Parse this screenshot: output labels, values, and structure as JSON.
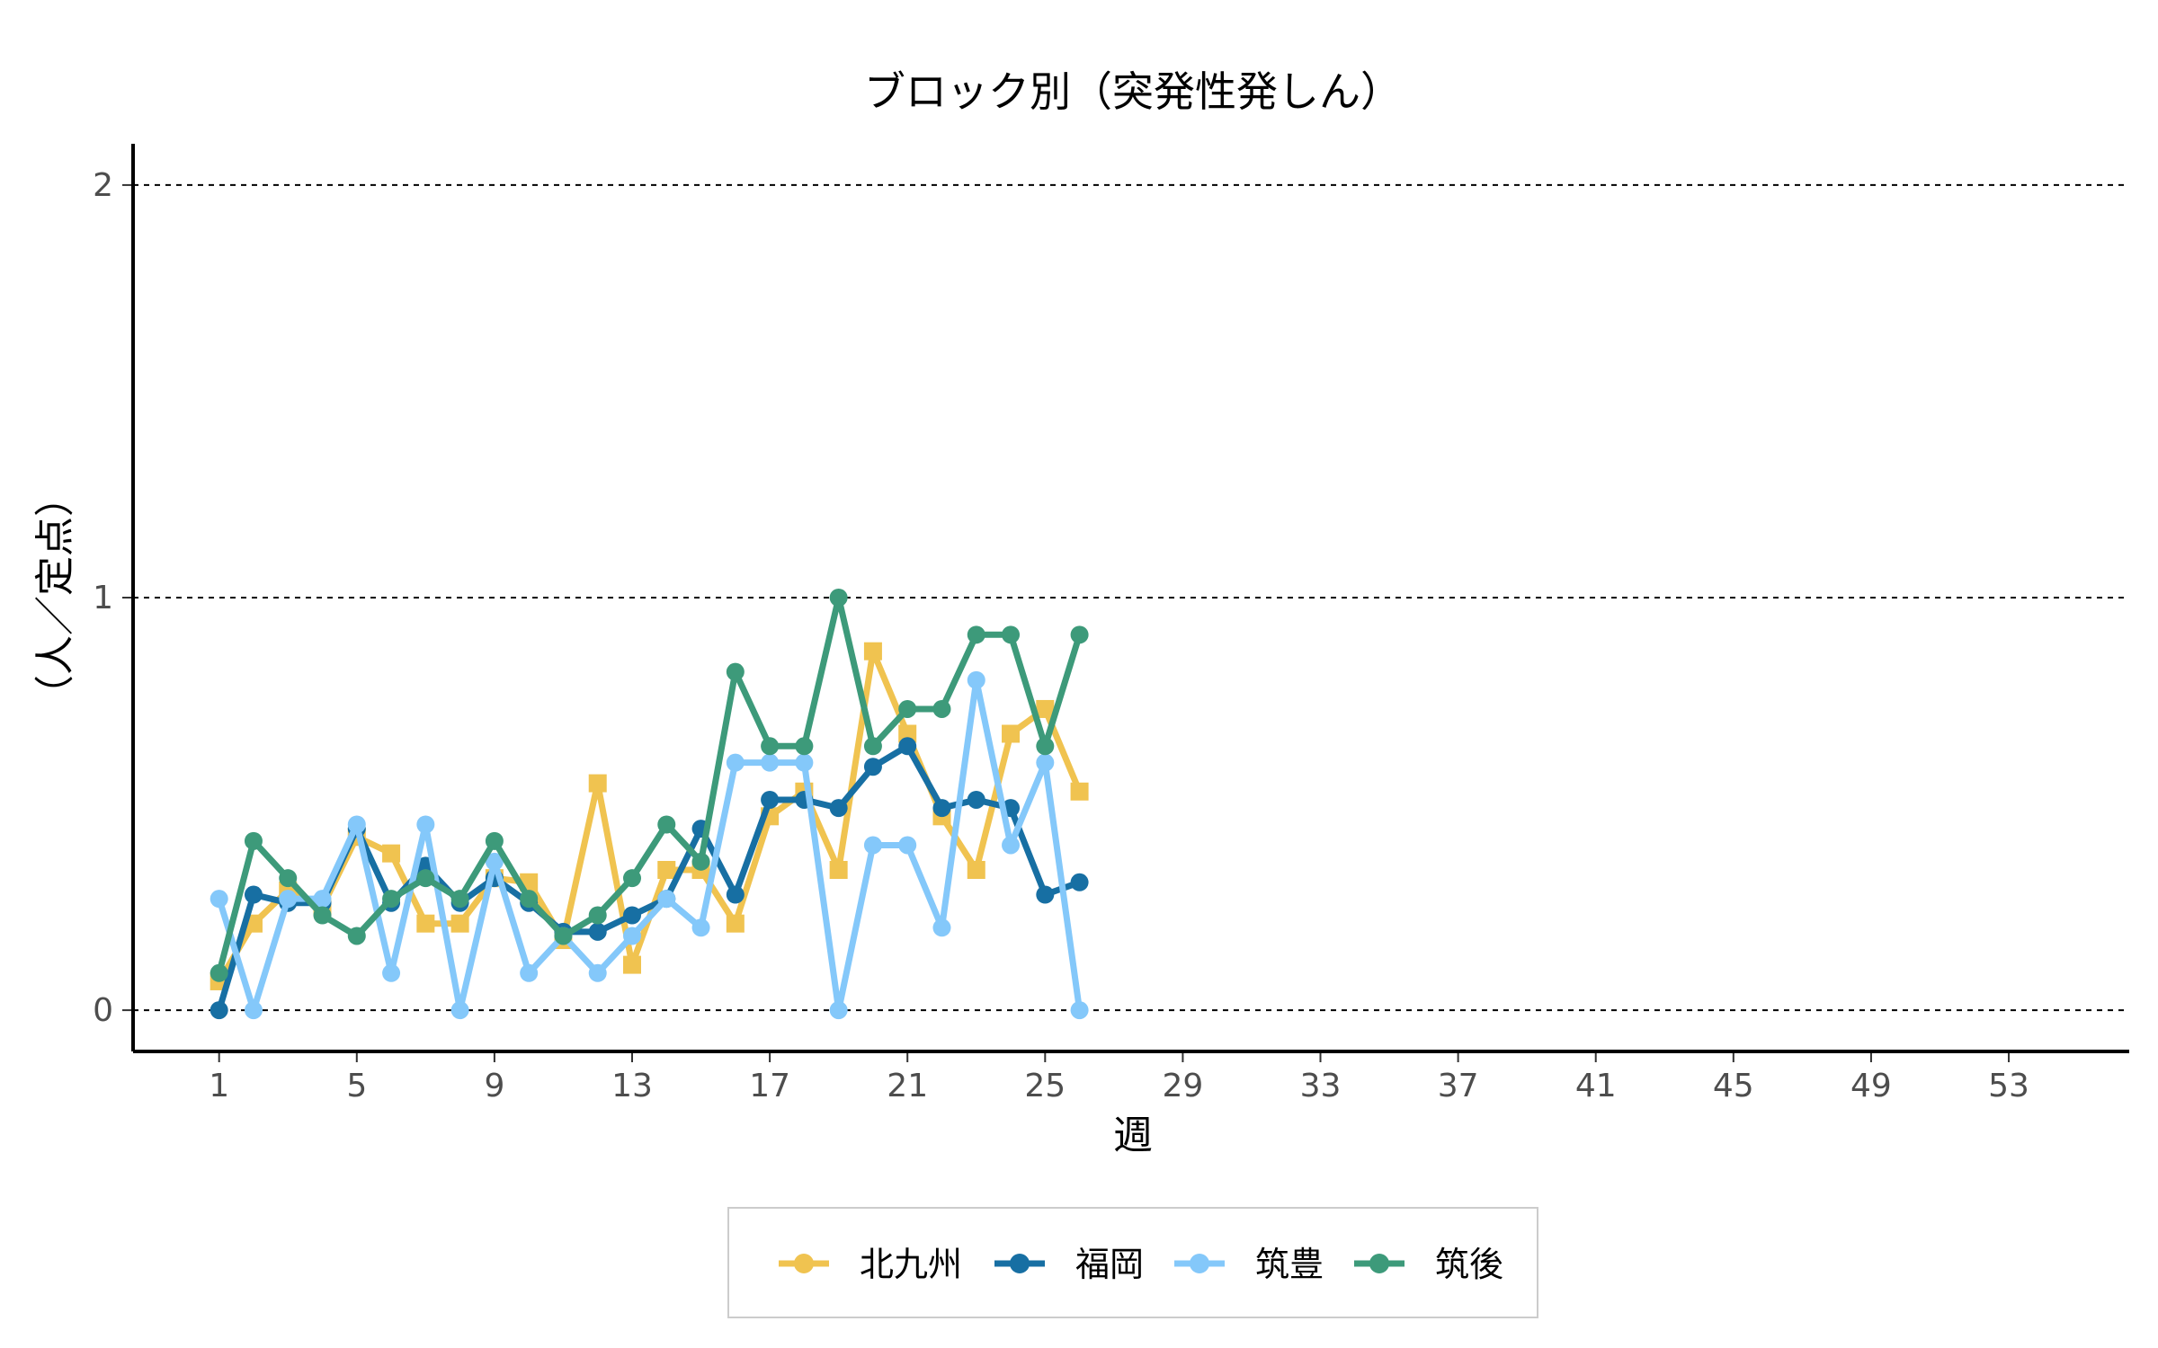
{
  "chart_data": {
    "type": "line",
    "title": "ブロック別（突発性発しん）",
    "xlabel": "週",
    "ylabel": "（人／定点）",
    "xlim": [
      -1.5,
      56.5
    ],
    "ylim": [
      -0.1,
      2.1
    ],
    "x_ticks": [
      1,
      5,
      9,
      13,
      17,
      21,
      25,
      29,
      33,
      37,
      41,
      45,
      49,
      53
    ],
    "y_ticks": [
      0,
      1,
      2
    ],
    "grid": "horizontal-dashed",
    "legend_position": "bottom",
    "x": [
      1,
      2,
      3,
      4,
      5,
      6,
      7,
      8,
      9,
      10,
      11,
      12,
      13,
      14,
      15,
      16,
      17,
      18,
      19,
      20,
      21,
      22,
      23,
      24,
      25,
      26
    ],
    "series": [
      {
        "name": "北九州",
        "color": "#F0C350",
        "marker": "square",
        "values": [
          0.07,
          0.21,
          0.29,
          0.25,
          0.42,
          0.38,
          0.21,
          0.21,
          0.32,
          0.31,
          0.17,
          0.55,
          0.11,
          0.34,
          0.34,
          0.21,
          0.47,
          0.53,
          0.34,
          0.87,
          0.67,
          0.47,
          0.34,
          0.67,
          0.73,
          0.53
        ]
      },
      {
        "name": "福岡",
        "color": "#176FA3",
        "marker": "circle",
        "values": [
          0.0,
          0.28,
          0.26,
          0.26,
          0.44,
          0.26,
          0.35,
          0.26,
          0.32,
          0.26,
          0.19,
          0.19,
          0.23,
          0.27,
          0.44,
          0.28,
          0.51,
          0.51,
          0.49,
          0.59,
          0.64,
          0.49,
          0.51,
          0.49,
          0.28,
          0.31
        ]
      },
      {
        "name": "筑豊",
        "color": "#84C8FA",
        "marker": "circle",
        "values": [
          0.27,
          0.0,
          0.27,
          0.27,
          0.45,
          0.09,
          0.45,
          0.0,
          0.36,
          0.09,
          0.18,
          0.09,
          0.18,
          0.27,
          0.2,
          0.6,
          0.6,
          0.6,
          0.0,
          0.4,
          0.4,
          0.2,
          0.8,
          0.4,
          0.6,
          0.0
        ]
      },
      {
        "name": "筑後",
        "color": "#3D9A7A",
        "marker": "circle",
        "values": [
          0.09,
          0.41,
          0.32,
          0.23,
          0.18,
          0.27,
          0.32,
          0.27,
          0.41,
          0.27,
          0.18,
          0.23,
          0.32,
          0.45,
          0.36,
          0.82,
          0.64,
          0.64,
          1.0,
          0.64,
          0.73,
          0.73,
          0.91,
          0.91,
          0.64,
          0.91
        ]
      }
    ]
  }
}
